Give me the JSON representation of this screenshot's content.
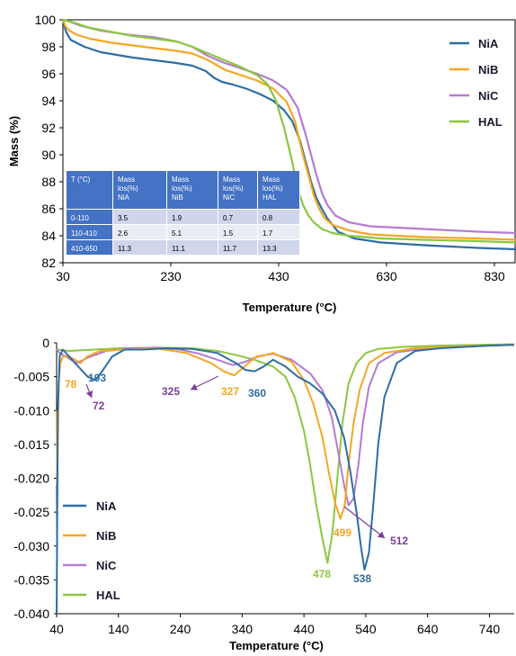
{
  "chart_data": [
    {
      "type": "line",
      "xlabel": "Temperature (°C)",
      "ylabel": "Mass (%)",
      "xlim": [
        30,
        870
      ],
      "ylim": [
        82,
        100
      ],
      "xticks": [
        "30",
        "230",
        "430",
        "630",
        "830"
      ],
      "yticks": [
        "82",
        "84",
        "86",
        "88",
        "90",
        "92",
        "94",
        "96",
        "98",
        "100"
      ],
      "legend_position": "right",
      "series": [
        {
          "name": "NiA",
          "color": "#2e6da4",
          "x": [
            30,
            32,
            35,
            40,
            45,
            55,
            70,
            100,
            130,
            160,
            200,
            240,
            270,
            295,
            310,
            325,
            345,
            370,
            395,
            420,
            440,
            455,
            470,
            480,
            490,
            500,
            510,
            520,
            540,
            570,
            620,
            700,
            800,
            870
          ],
          "y": [
            100,
            99.7,
            99.2,
            98.8,
            98.5,
            98.3,
            98.0,
            97.6,
            97.4,
            97.2,
            97.0,
            96.8,
            96.6,
            96.2,
            95.7,
            95.4,
            95.2,
            94.9,
            94.5,
            94.0,
            93.3,
            92.5,
            91.0,
            89.5,
            88.0,
            86.8,
            86.0,
            85.3,
            84.3,
            83.8,
            83.5,
            83.3,
            83.1,
            83.0
          ]
        },
        {
          "name": "NiB",
          "color": "#f5a623",
          "x": [
            30,
            35,
            42,
            55,
            80,
            120,
            160,
            200,
            240,
            270,
            300,
            330,
            360,
            390,
            420,
            445,
            460,
            475,
            485,
            495,
            505,
            515,
            530,
            560,
            600,
            700,
            800,
            870
          ],
          "y": [
            100,
            99.5,
            99.2,
            98.9,
            98.6,
            98.3,
            98.1,
            97.9,
            97.7,
            97.5,
            97.0,
            96.3,
            95.9,
            95.5,
            94.9,
            93.9,
            92.5,
            90.0,
            88.5,
            87.0,
            86.0,
            85.3,
            84.8,
            84.4,
            84.1,
            83.9,
            83.8,
            83.7
          ]
        },
        {
          "name": "NiC",
          "color": "#b57bd0",
          "x": [
            30,
            40,
            60,
            100,
            150,
            200,
            240,
            270,
            300,
            330,
            360,
            390,
            420,
            445,
            465,
            480,
            490,
            500,
            510,
            520,
            535,
            560,
            600,
            700,
            800,
            870
          ],
          "y": [
            100,
            99.9,
            99.6,
            99.2,
            98.9,
            98.7,
            98.4,
            98.0,
            97.3,
            96.8,
            96.4,
            96.0,
            95.5,
            94.8,
            93.5,
            91.5,
            90.0,
            88.5,
            87.2,
            86.3,
            85.5,
            85.0,
            84.7,
            84.5,
            84.3,
            84.2
          ]
        },
        {
          "name": "HAL",
          "color": "#8cc63f",
          "x": [
            30,
            50,
            80,
            120,
            160,
            200,
            240,
            270,
            300,
            330,
            360,
            390,
            410,
            425,
            440,
            455,
            465,
            475,
            485,
            495,
            510,
            530,
            560,
            620,
            700,
            800,
            870
          ],
          "y": [
            100,
            99.8,
            99.4,
            99.1,
            98.8,
            98.6,
            98.4,
            98.0,
            97.5,
            97.0,
            96.5,
            95.9,
            95.2,
            94.0,
            92.0,
            89.5,
            87.5,
            86.3,
            85.5,
            85.0,
            84.5,
            84.2,
            84.0,
            83.8,
            83.7,
            83.6,
            83.5
          ]
        }
      ],
      "table": {
        "headers": [
          "T (°C)",
          "Mass los(%) NiA",
          "Mass los(%) NiB",
          "Mass los(%) NiC",
          "Mass los(%) HAL"
        ],
        "rows": [
          [
            "0-110",
            "3.5",
            "1.9",
            "0.7",
            "0.8"
          ],
          [
            "110-410",
            "2.6",
            "5.1",
            "1.5",
            "1.7"
          ],
          [
            "410-650",
            "11.3",
            "11.1",
            "11.7",
            "13.3"
          ]
        ]
      }
    },
    {
      "type": "line",
      "xlabel": "Temperature (°C)",
      "ylabel": "",
      "xlim": [
        40,
        780
      ],
      "ylim": [
        -0.04,
        0
      ],
      "xticks": [
        "40",
        "140",
        "240",
        "340",
        "440",
        "540",
        "640",
        "740"
      ],
      "yticks": [
        "0",
        "-0.005",
        "-0.010",
        "-0.015",
        "-0.020",
        "-0.025",
        "-0.030",
        "-0.035",
        "-0.040"
      ],
      "legend_position": "left",
      "series": [
        {
          "name": "NiA",
          "color": "#2e6da4",
          "x": [
            40,
            42,
            45,
            50,
            60,
            70,
            80,
            90,
            103,
            115,
            130,
            150,
            180,
            220,
            260,
            300,
            330,
            345,
            360,
            375,
            390,
            410,
            430,
            450,
            470,
            490,
            505,
            515,
            525,
            532,
            538,
            545,
            552,
            560,
            570,
            590,
            620,
            660,
            700,
            740,
            780
          ],
          "y": [
            -0.04,
            -0.01,
            -0.002,
            -0.001,
            -0.002,
            -0.003,
            -0.004,
            -0.005,
            -0.0055,
            -0.004,
            -0.002,
            -0.001,
            -0.001,
            -0.0008,
            -0.0009,
            -0.0015,
            -0.003,
            -0.004,
            -0.0042,
            -0.0035,
            -0.0025,
            -0.0035,
            -0.005,
            -0.006,
            -0.0075,
            -0.01,
            -0.014,
            -0.019,
            -0.025,
            -0.03,
            -0.0335,
            -0.031,
            -0.024,
            -0.015,
            -0.008,
            -0.003,
            -0.0012,
            -0.0008,
            -0.0006,
            -0.0004,
            -0.0003
          ]
        },
        {
          "name": "NiB",
          "color": "#f5a623",
          "x": [
            40,
            41,
            43,
            46,
            50,
            60,
            70,
            78,
            90,
            110,
            150,
            200,
            250,
            290,
            310,
            327,
            340,
            360,
            390,
            420,
            440,
            455,
            470,
            480,
            490,
            499,
            506,
            512,
            520,
            530,
            545,
            570,
            620,
            700,
            780
          ],
          "y": [
            -0.01,
            -0.021,
            -0.006,
            -0.003,
            -0.002,
            -0.002,
            -0.0025,
            -0.003,
            -0.002,
            -0.0012,
            -0.001,
            -0.0008,
            -0.0015,
            -0.003,
            -0.0042,
            -0.0048,
            -0.0038,
            -0.0022,
            -0.0015,
            -0.0028,
            -0.0055,
            -0.009,
            -0.014,
            -0.019,
            -0.0235,
            -0.026,
            -0.024,
            -0.018,
            -0.012,
            -0.007,
            -0.003,
            -0.0015,
            -0.0008,
            -0.0005,
            -0.0003
          ]
        },
        {
          "name": "NiC",
          "color": "#b57bd0",
          "x": [
            40,
            45,
            55,
            72,
            90,
            120,
            160,
            200,
            240,
            270,
            300,
            325,
            345,
            365,
            390,
            420,
            450,
            470,
            485,
            495,
            505,
            512,
            520,
            528,
            535,
            545,
            560,
            590,
            640,
            700,
            780
          ],
          "y": [
            -0.001,
            -0.0015,
            -0.002,
            -0.003,
            -0.0022,
            -0.0012,
            -0.0008,
            -0.0007,
            -0.001,
            -0.0016,
            -0.0025,
            -0.0033,
            -0.0028,
            -0.002,
            -0.0016,
            -0.0025,
            -0.0045,
            -0.007,
            -0.011,
            -0.016,
            -0.021,
            -0.024,
            -0.023,
            -0.018,
            -0.012,
            -0.0065,
            -0.003,
            -0.0014,
            -0.0008,
            -0.0005,
            -0.0003
          ]
        },
        {
          "name": "HAL",
          "color": "#8cc63f",
          "x": [
            40,
            60,
            100,
            140,
            200,
            260,
            300,
            330,
            360,
            390,
            410,
            425,
            440,
            450,
            460,
            470,
            478,
            486,
            494,
            502,
            512,
            525,
            540,
            560,
            600,
            660,
            720,
            780
          ],
          "y": [
            -0.001,
            -0.0012,
            -0.001,
            -0.0008,
            -0.0007,
            -0.0008,
            -0.0012,
            -0.0018,
            -0.0025,
            -0.0035,
            -0.005,
            -0.008,
            -0.013,
            -0.018,
            -0.024,
            -0.029,
            -0.0325,
            -0.028,
            -0.02,
            -0.012,
            -0.006,
            -0.003,
            -0.0015,
            -0.0009,
            -0.0006,
            -0.0004,
            -0.0003,
            -0.0002
          ]
        }
      ],
      "annotations": [
        {
          "text": "78",
          "color": "#f5a623",
          "x": 78,
          "y": -0.0058,
          "series": "NiB"
        },
        {
          "text": "103",
          "color": "#2e6da4",
          "x": 103,
          "y": -0.0055,
          "series": "NiA"
        },
        {
          "text": "72",
          "color": "#7b3f98",
          "x": 72,
          "y": -0.0095,
          "series": "NiC"
        },
        {
          "text": "325",
          "color": "#7b3f98",
          "x": 325,
          "y": -0.0033,
          "series": "NiC"
        },
        {
          "text": "327",
          "color": "#f5a623",
          "x": 327,
          "y": -0.0048,
          "series": "NiB"
        },
        {
          "text": "360",
          "color": "#2e6da4",
          "x": 360,
          "y": -0.0042,
          "series": "NiA"
        },
        {
          "text": "499",
          "color": "#f5a623",
          "x": 499,
          "y": -0.026,
          "series": "NiB"
        },
        {
          "text": "512",
          "color": "#7b3f98",
          "x": 512,
          "y": -0.024,
          "series": "NiC"
        },
        {
          "text": "478",
          "color": "#8cc63f",
          "x": 478,
          "y": -0.0325,
          "series": "HAL"
        },
        {
          "text": "538",
          "color": "#2e6da4",
          "x": 538,
          "y": -0.0335,
          "series": "NiA"
        }
      ]
    }
  ]
}
